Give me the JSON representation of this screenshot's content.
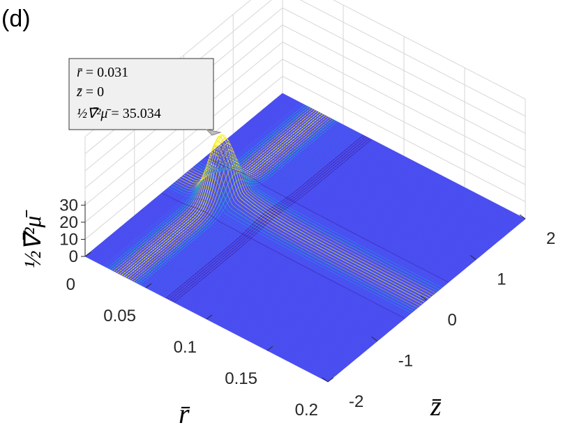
{
  "panel_label": "(d)",
  "chart_data": {
    "type": "surface",
    "x_axis": {
      "label": "r̄",
      "ticks": [
        0,
        0.05,
        0.1,
        0.15,
        0.2
      ],
      "tick_labels": [
        "0",
        "0.05",
        "0.1",
        "0.15",
        "0.2"
      ],
      "range": [
        0,
        0.2
      ]
    },
    "y_axis": {
      "label": "z̄",
      "ticks": [
        -2,
        -1,
        0,
        1,
        2
      ],
      "tick_labels": [
        "-2",
        "-1",
        "0",
        "1",
        "2"
      ],
      "range": [
        -2,
        2
      ]
    },
    "z_axis": {
      "label": "½∇̄²μ̄",
      "ticks": [
        0,
        10,
        20,
        30
      ],
      "tick_labels": [
        "0",
        "10",
        "20",
        "30"
      ]
    },
    "peak": {
      "r": 0.031,
      "z": 0,
      "value": 35.034
    },
    "colormap": [
      "#3e26a8",
      "#4361f2",
      "#2c8de9",
      "#1aaec9",
      "#3dbd9d",
      "#91be6e",
      "#d8b949",
      "#fbd22c",
      "#f9fb15"
    ],
    "grid": true,
    "datatip": {
      "line1": {
        "var": "r̄",
        "value": "0.031"
      },
      "line2": {
        "var": "z̄",
        "value": "0"
      },
      "line3": {
        "var": "½∇̄²μ̄",
        "value": "35.034"
      }
    }
  }
}
